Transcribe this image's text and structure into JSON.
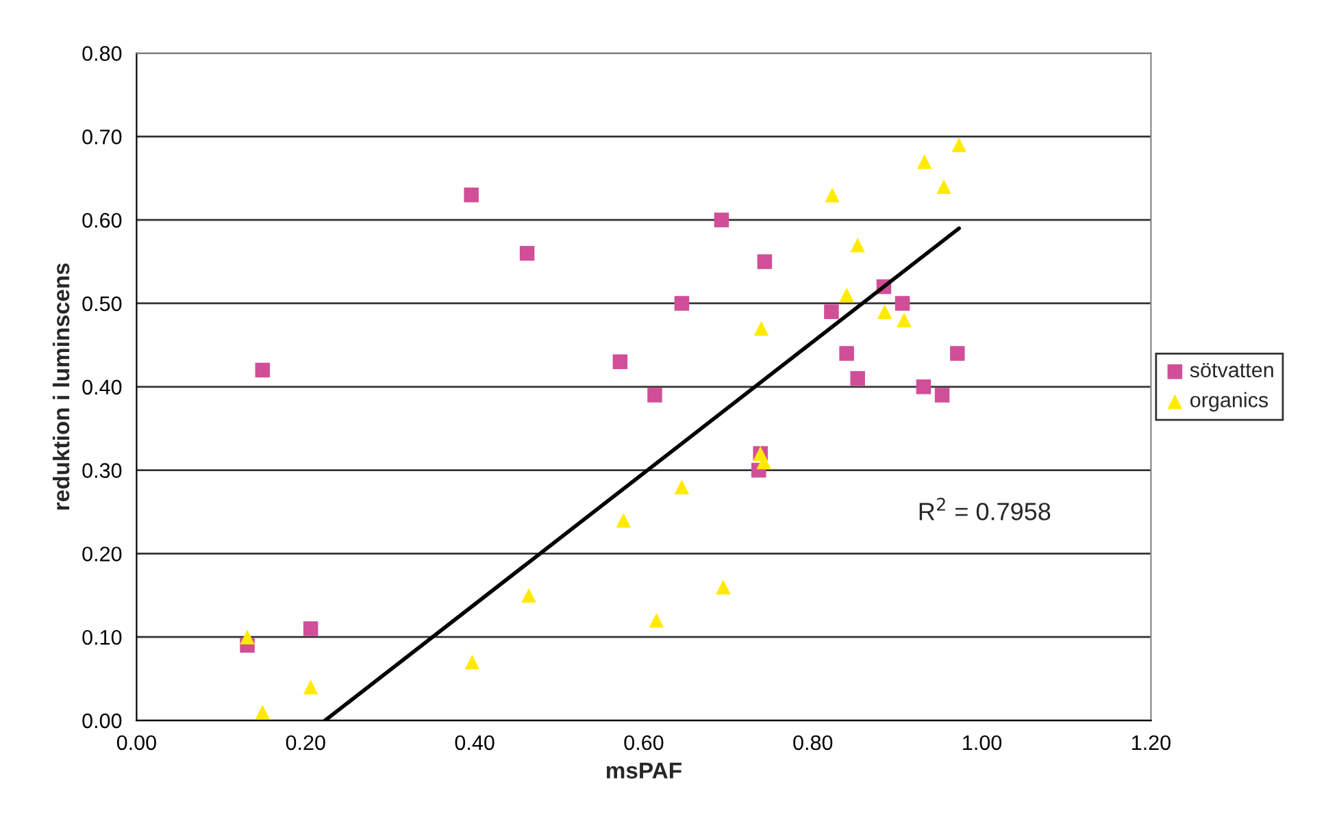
{
  "chart_data": {
    "type": "scatter",
    "xlabel": "msPAF",
    "ylabel": "reduktion i luminscens",
    "xlim": [
      0,
      1.2
    ],
    "xticks": [
      {
        "value": 0,
        "label": "0.00"
      },
      {
        "value": 0.2,
        "label": "0.20"
      },
      {
        "value": 0.4,
        "label": "0.40"
      },
      {
        "value": 0.6,
        "label": "0.60"
      },
      {
        "value": 0.8,
        "label": "0.80"
      },
      {
        "value": 1.0,
        "label": "1.00"
      },
      {
        "value": 1.2,
        "label": "1.20"
      }
    ],
    "ylim": [
      0,
      0.8
    ],
    "yticks": [
      {
        "value": 0,
        "label": "0.00"
      },
      {
        "value": 0.1,
        "label": "0.10"
      },
      {
        "value": 0.2,
        "label": "0.20"
      },
      {
        "value": 0.3,
        "label": "0.30"
      },
      {
        "value": 0.4,
        "label": "0.40"
      },
      {
        "value": 0.5,
        "label": "0.50"
      },
      {
        "value": 0.6,
        "label": "0.60"
      },
      {
        "value": 0.7,
        "label": "0.70"
      },
      {
        "value": 0.8,
        "label": "0.80"
      }
    ],
    "grid": "y",
    "legend": "right",
    "annotations": [
      "R$^{2}$ = 0.7958"
    ],
    "series": [
      {
        "name": "sötvatten",
        "color": "#d04f98",
        "marker": "square",
        "x": [
          0.131,
          0.149,
          0.206,
          0.396,
          0.462,
          0.572,
          0.613,
          0.645,
          0.692,
          0.743,
          0.738,
          0.736,
          0.822,
          0.84,
          0.853,
          0.884,
          0.906,
          0.931,
          0.953,
          0.971
        ],
        "values": [
          0.09,
          0.42,
          0.11,
          0.63,
          0.56,
          0.43,
          0.39,
          0.5,
          0.6,
          0.55,
          0.32,
          0.3,
          0.49,
          0.44,
          0.41,
          0.52,
          0.5,
          0.4,
          0.39,
          0.44
        ]
      },
      {
        "name": "organics",
        "color": "#ffea00",
        "marker": "triangle",
        "x": [
          0.131,
          0.149,
          0.206,
          0.397,
          0.464,
          0.576,
          0.615,
          0.645,
          0.694,
          0.739,
          0.738,
          0.742,
          0.823,
          0.84,
          0.853,
          0.885,
          0.908,
          0.932,
          0.955,
          0.973
        ],
        "values": [
          0.1,
          0.01,
          0.04,
          0.07,
          0.15,
          0.24,
          0.12,
          0.28,
          0.16,
          0.47,
          0.32,
          0.31,
          0.63,
          0.51,
          0.57,
          0.49,
          0.48,
          0.67,
          0.64,
          0.69
        ]
      },
      {
        "type": "line",
        "color": "#000000",
        "marker": "none",
        "x": [
          0.223,
          0.973
        ],
        "values": [
          0,
          0.59
        ]
      }
    ]
  }
}
